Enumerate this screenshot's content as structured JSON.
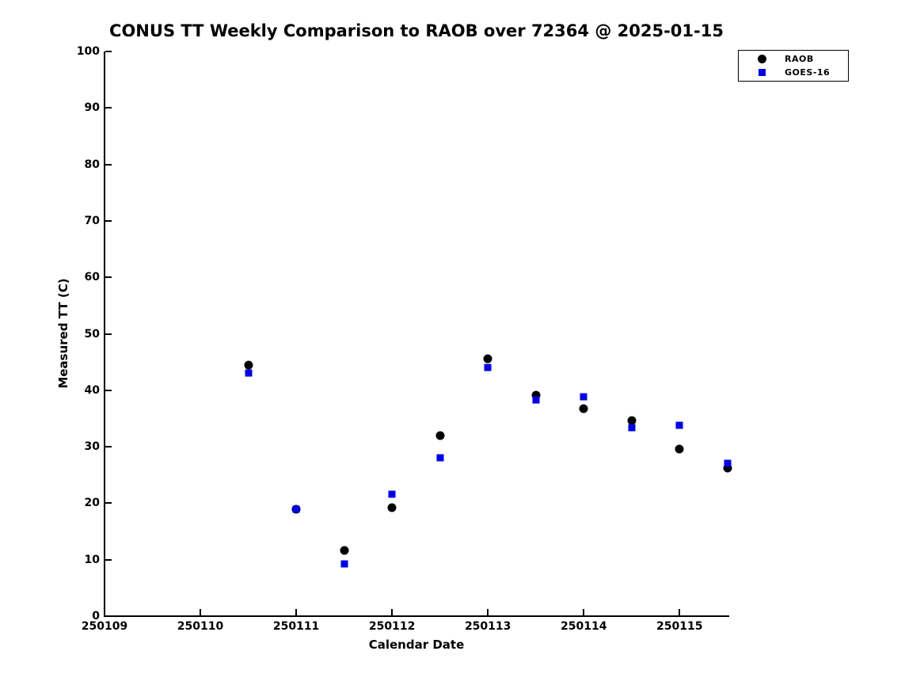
{
  "title": "CONUS TT Weekly Comparison to RAOB over 72364 @ 2025-01-15",
  "axes": {
    "xlabel": "Calendar Date",
    "ylabel": "Measured TT (C)"
  },
  "legend": {
    "items": [
      {
        "label": "RAOB",
        "marker": "circle-icon",
        "color": "#000000"
      },
      {
        "label": "GOES-16",
        "marker": "square-icon",
        "color": "#0000ee"
      }
    ]
  },
  "chart_data": {
    "type": "scatter",
    "title": "CONUS TT Weekly Comparison to RAOB over 72364 @ 2025-01-15",
    "xlabel": "Calendar Date",
    "ylabel": "Measured TT (C)",
    "xlim": [
      250109,
      250115.51
    ],
    "ylim": [
      0,
      100
    ],
    "grid": false,
    "legend_position": "top-right",
    "x_tick_labels": [
      "250109",
      "250110",
      "250111",
      "250112",
      "250113",
      "250114",
      "250115"
    ],
    "y_tick_values": [
      0,
      10,
      20,
      30,
      40,
      50,
      60,
      70,
      80,
      90,
      100
    ],
    "x": [
      250110.5,
      250111.0,
      250111.5,
      250112.0,
      250112.5,
      250113.0,
      250113.5,
      250114.0,
      250114.5,
      250115.0,
      250115.5
    ],
    "series": [
      {
        "name": "RAOB",
        "marker": "circle",
        "color": "#000000",
        "values": [
          44.5,
          18.9,
          11.7,
          19.2,
          32.0,
          45.6,
          39.1,
          36.7,
          34.6,
          29.6,
          26.2
        ]
      },
      {
        "name": "GOES-16",
        "marker": "square",
        "color": "#0000ee",
        "values": [
          43.0,
          18.9,
          9.3,
          21.6,
          28.1,
          44.1,
          38.3,
          38.8,
          33.4,
          33.8,
          27.1
        ]
      }
    ]
  }
}
